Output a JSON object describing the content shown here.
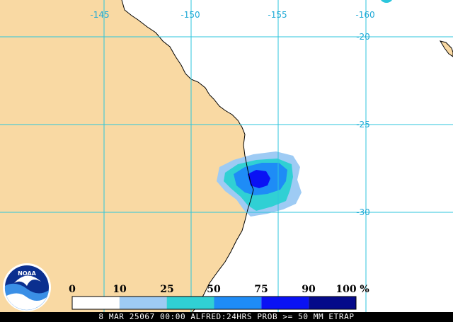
{
  "map": {
    "longitude_labels": [
      "-145",
      "-150",
      "-155",
      "-160"
    ],
    "latitude_labels": [
      "-20",
      "-25",
      "-30"
    ],
    "colors": {
      "land": "#f9d9a3",
      "ocean": "#ffffff",
      "grid": "#2cc6dc",
      "coastline": "#000000",
      "grid_label": "#1fa9d6"
    }
  },
  "legend": {
    "ticks": [
      "0",
      "10",
      "25",
      "50",
      "75",
      "90",
      "100"
    ],
    "unit": "%",
    "bins": [
      {
        "from": 0,
        "to": 10,
        "color": "#ffffff"
      },
      {
        "from": 10,
        "to": 25,
        "color": "#9ecbf4"
      },
      {
        "from": 25,
        "to": 50,
        "color": "#30d0d4"
      },
      {
        "from": 50,
        "to": 75,
        "color": "#1e8cf6"
      },
      {
        "from": 75,
        "to": 90,
        "color": "#0a12f4"
      },
      {
        "from": 90,
        "to": 100,
        "color": "#050a8a"
      }
    ]
  },
  "logo": {
    "text": "NOAA"
  },
  "footer": {
    "text": "8 MAR 25067 00:00 ALFRED:24HRS PROB >= 50 MM ETRAP"
  }
}
